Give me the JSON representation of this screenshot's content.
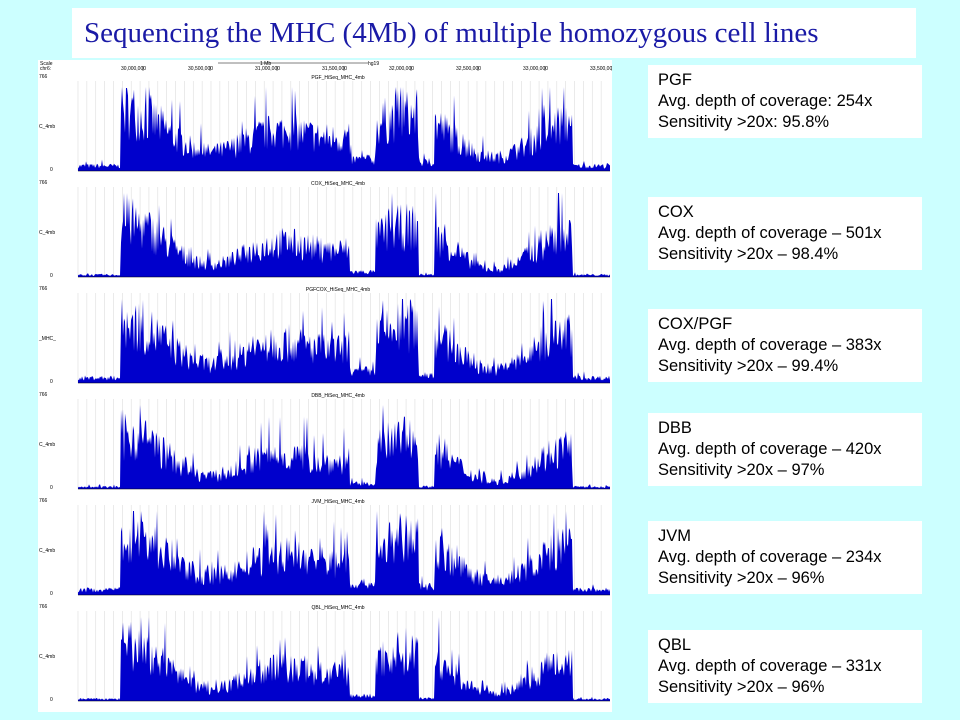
{
  "title": "Sequencing the MHC (4Mb) of multiple homozygous cell lines",
  "browser": {
    "scale_label": "Scale",
    "chrom_label": "chr6:",
    "scale_bar": "1 Mb",
    "assembly": "hg19",
    "positions": [
      "30,000,000",
      "30,500,000",
      "31,000,000",
      "31,500,000",
      "32,000,000",
      "32,500,000",
      "33,000,000",
      "33,500,000"
    ]
  },
  "tracks": [
    {
      "name": "PGF_HiSeq_MHC_4mb",
      "y_label": "C_4mb",
      "y_max": "766",
      "y_min": "0"
    },
    {
      "name": "COX_HiSeq_MHC_4mb",
      "y_label": "C_4mb",
      "y_max": "766",
      "y_min": "0"
    },
    {
      "name": "PGFCOX_HiSeq_MHC_4mb",
      "y_label": "_MHC_",
      "y_max": "766",
      "y_min": "0"
    },
    {
      "name": "DBB_HiSeq_MHC_4mb",
      "y_label": "C_4mb",
      "y_max": "766",
      "y_min": "0"
    },
    {
      "name": "JVM_HiSeq_MHC_4mb",
      "y_label": "C_4mb",
      "y_max": "766",
      "y_min": "0"
    },
    {
      "name": "QBL_HiSeq_MHC_4mb",
      "y_label": "C_4mb",
      "y_max": "766",
      "y_min": "0"
    }
  ],
  "panels": [
    {
      "sample": "PGF",
      "depth": "Avg. depth of coverage: 254x",
      "sensitivity": "Sensitivity >20x: 95.8%"
    },
    {
      "sample": "COX",
      "depth": "Avg. depth of coverage – 501x",
      "sensitivity": "Sensitivity >20x – 98.4%"
    },
    {
      "sample": "COX/PGF",
      "depth": "Avg. depth of coverage – 383x",
      "sensitivity": "Sensitivity >20x – 99.4%"
    },
    {
      "sample": "DBB",
      "depth": "Avg. depth of coverage – 420x",
      "sensitivity": "Sensitivity >20x – 97%"
    },
    {
      "sample": "JVM",
      "depth": "Avg. depth of coverage – 234x",
      "sensitivity": "Sensitivity >20x – 96%"
    },
    {
      "sample": "QBL",
      "depth": "Avg. depth of coverage – 331x",
      "sensitivity": "Sensitivity >20x – 96%"
    }
  ]
}
